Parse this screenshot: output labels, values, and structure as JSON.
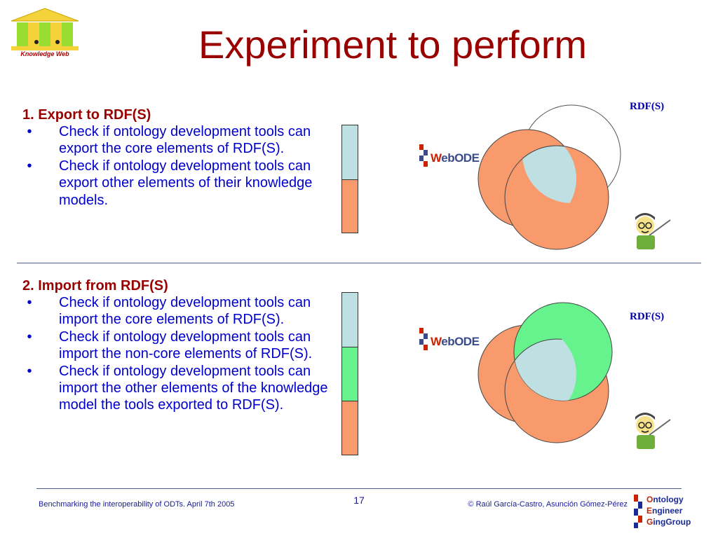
{
  "logo": {
    "text": "Knowledge Web"
  },
  "title": "Experiment to perform",
  "section1": {
    "heading": "1. Export to RDF(S)",
    "bullets": [
      "Check if ontology development tools can export the core elements of RDF(S).",
      "Check if ontology development tools can export other elements of their knowledge models."
    ],
    "bar_colors": [
      "#bfe0e3",
      "#f89a6b"
    ]
  },
  "section2": {
    "heading": "2. Import from RDF(S)",
    "bullets": [
      "Check if ontology development tools can import the core elements of RDF(S).",
      "Check if ontology development tools can import the non-core elements of RDF(S).",
      "Check if ontology development tools can import the other elements of the knowledge model the tools exported to RDF(S)."
    ],
    "bar_colors": [
      "#bfe0e3",
      "#66f28c",
      "#f89a6b"
    ]
  },
  "diagram": {
    "rdf_label": "RDF(S)",
    "webode_prefix": "W",
    "webode_rest": "ebODE",
    "colors": {
      "orange": "#f89a6b",
      "light_blue": "#bfe0e3",
      "green": "#66f28c"
    }
  },
  "bullet_char": "•",
  "footer": {
    "left": "Benchmarking the interoperability of ODTs. April 7th 2005",
    "page": "17",
    "right": "© Raúl García-Castro, Asunción Gómez-Pérez",
    "oeg_caps": [
      "O",
      "E",
      "G"
    ],
    "oeg_rests": [
      "ntology",
      "ngineer",
      "ingGroup"
    ]
  }
}
